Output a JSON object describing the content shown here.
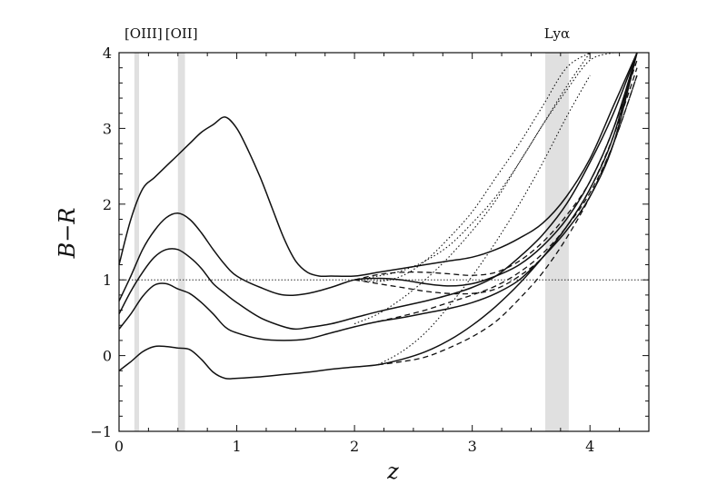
{
  "chart_data": {
    "type": "line",
    "title": "",
    "xlabel": "z",
    "ylabel": "B−R",
    "xlim": [
      0,
      4.5
    ],
    "ylim": [
      -1,
      4
    ],
    "xticks": [
      0,
      1,
      2,
      3,
      4
    ],
    "yticks": [
      -1,
      0,
      1,
      2,
      3,
      4
    ],
    "grid": false,
    "reference_line": {
      "y": 1,
      "style": "dotted"
    },
    "bands": [
      {
        "label": "[OIII]",
        "x": [
          0.13,
          0.17
        ],
        "color": "#e0e0e0"
      },
      {
        "label": "[OII]",
        "x": [
          0.5,
          0.56
        ],
        "color": "#e0e0e0"
      },
      {
        "label": "Lyα",
        "x": [
          3.62,
          3.82
        ],
        "color": "#e0e0e0"
      }
    ],
    "series": [
      {
        "style": "solid",
        "x": [
          0,
          0.1,
          0.2,
          0.3,
          0.4,
          0.5,
          0.6,
          0.7,
          0.8,
          0.9,
          1.0,
          1.1,
          1.2,
          1.3,
          1.4,
          1.5,
          1.6,
          1.7,
          1.8,
          2.0,
          2.2,
          2.4,
          2.6,
          2.8,
          3.0,
          3.2,
          3.4,
          3.6,
          3.8,
          4.0,
          4.2,
          4.4
        ],
        "y": [
          1.2,
          1.8,
          2.2,
          2.35,
          2.5,
          2.65,
          2.8,
          2.95,
          3.05,
          3.15,
          3.0,
          2.7,
          2.35,
          1.95,
          1.55,
          1.25,
          1.1,
          1.05,
          1.05,
          1.05,
          1.1,
          1.15,
          1.2,
          1.25,
          1.3,
          1.4,
          1.55,
          1.75,
          2.1,
          2.6,
          3.3,
          4.0
        ]
      },
      {
        "style": "solid",
        "x": [
          0,
          0.1,
          0.2,
          0.3,
          0.4,
          0.5,
          0.6,
          0.7,
          0.8,
          0.9,
          1.0,
          1.2,
          1.4,
          1.6,
          1.8,
          2.0,
          2.2,
          2.4,
          2.6,
          2.8,
          3.0,
          3.2,
          3.4,
          3.6,
          3.8,
          4.0,
          4.2,
          4.4
        ],
        "y": [
          0.72,
          1.05,
          1.4,
          1.65,
          1.82,
          1.88,
          1.8,
          1.62,
          1.4,
          1.2,
          1.05,
          0.9,
          0.8,
          0.82,
          0.9,
          1.0,
          1.02,
          1.0,
          0.95,
          0.92,
          0.95,
          1.05,
          1.2,
          1.45,
          1.8,
          2.3,
          3.0,
          4.0
        ]
      },
      {
        "style": "solid",
        "x": [
          0,
          0.1,
          0.2,
          0.3,
          0.4,
          0.5,
          0.6,
          0.7,
          0.8,
          0.9,
          1.0,
          1.2,
          1.4,
          1.5,
          1.6,
          1.8,
          2.0,
          2.2,
          2.4,
          2.6,
          2.8,
          3.0,
          3.2,
          3.4,
          3.6,
          3.8,
          4.0,
          4.2,
          4.4
        ],
        "y": [
          0.55,
          0.85,
          1.1,
          1.3,
          1.4,
          1.4,
          1.3,
          1.15,
          0.95,
          0.82,
          0.7,
          0.5,
          0.38,
          0.35,
          0.37,
          0.42,
          0.5,
          0.58,
          0.65,
          0.72,
          0.8,
          0.9,
          1.05,
          1.3,
          1.6,
          2.0,
          2.55,
          3.2,
          4.0
        ]
      },
      {
        "style": "solid",
        "x": [
          0,
          0.1,
          0.2,
          0.3,
          0.4,
          0.5,
          0.6,
          0.7,
          0.8,
          0.9,
          1.0,
          1.2,
          1.4,
          1.6,
          1.8,
          2.0,
          2.2,
          2.4,
          2.6,
          2.8,
          3.0,
          3.2,
          3.4,
          3.6,
          3.8,
          4.0,
          4.2,
          4.4
        ],
        "y": [
          0.35,
          0.55,
          0.78,
          0.93,
          0.95,
          0.88,
          0.82,
          0.7,
          0.55,
          0.38,
          0.3,
          0.22,
          0.2,
          0.22,
          0.3,
          0.38,
          0.45,
          0.5,
          0.56,
          0.62,
          0.7,
          0.82,
          1.0,
          1.3,
          1.65,
          2.1,
          2.8,
          4.0
        ]
      },
      {
        "style": "solid",
        "x": [
          0,
          0.1,
          0.2,
          0.3,
          0.4,
          0.5,
          0.6,
          0.7,
          0.8,
          0.9,
          1.0,
          1.2,
          1.4,
          1.6,
          1.8,
          2.0,
          2.2,
          2.4,
          2.6,
          2.8,
          3.0,
          3.2,
          3.4,
          3.6,
          3.8,
          4.0,
          4.2,
          4.4
        ],
        "y": [
          -0.2,
          -0.08,
          0.05,
          0.12,
          0.12,
          0.1,
          0.08,
          -0.05,
          -0.22,
          -0.3,
          -0.3,
          -0.28,
          -0.25,
          -0.22,
          -0.18,
          -0.15,
          -0.12,
          -0.05,
          0.05,
          0.2,
          0.4,
          0.65,
          0.95,
          1.3,
          1.7,
          2.2,
          2.9,
          4.0
        ]
      },
      {
        "style": "dashed",
        "x": [
          2.0,
          2.2,
          2.4,
          2.6,
          2.8,
          3.0,
          3.2,
          3.4,
          3.6,
          3.8,
          4.0,
          4.2,
          4.4
        ],
        "y": [
          1.0,
          1.07,
          1.1,
          1.1,
          1.08,
          1.06,
          1.1,
          1.25,
          1.5,
          1.85,
          2.3,
          3.0,
          3.9
        ]
      },
      {
        "style": "dashed",
        "x": [
          2.0,
          2.2,
          2.4,
          2.6,
          2.8,
          3.0,
          3.2,
          3.4,
          3.6,
          3.8,
          4.0,
          4.2,
          4.4
        ],
        "y": [
          1.0,
          0.95,
          0.9,
          0.85,
          0.82,
          0.82,
          0.88,
          1.05,
          1.3,
          1.7,
          2.2,
          2.9,
          3.8
        ]
      },
      {
        "style": "dashed",
        "x": [
          2.2,
          2.4,
          2.6,
          2.8,
          3.0,
          3.2,
          3.4,
          3.6,
          3.8,
          4.0,
          4.2,
          4.4
        ],
        "y": [
          0.45,
          0.52,
          0.6,
          0.7,
          0.8,
          0.92,
          1.1,
          1.35,
          1.7,
          2.15,
          2.8,
          3.7
        ]
      },
      {
        "style": "dashed",
        "x": [
          2.2,
          2.4,
          2.6,
          2.8,
          3.0,
          3.2,
          3.4,
          3.6,
          3.8,
          4.0,
          4.2,
          4.4
        ],
        "y": [
          -0.12,
          -0.08,
          -0.02,
          0.1,
          0.25,
          0.45,
          0.75,
          1.1,
          1.55,
          2.1,
          2.8,
          3.7
        ]
      },
      {
        "style": "dotted",
        "x": [
          2.0,
          2.2,
          2.4,
          2.6,
          2.8,
          3.0,
          3.2,
          3.4,
          3.6,
          3.8,
          4.0,
          4.2
        ],
        "y": [
          1.0,
          1.05,
          1.12,
          1.25,
          1.45,
          1.75,
          2.1,
          2.55,
          3.05,
          3.5,
          3.9,
          4.0
        ]
      },
      {
        "style": "dotted",
        "x": [
          2.0,
          2.2,
          2.4,
          2.6,
          2.8,
          3.0,
          3.2,
          3.4,
          3.6,
          3.8,
          4.0
        ],
        "y": [
          1.0,
          0.98,
          1.05,
          1.25,
          1.55,
          1.9,
          2.35,
          2.8,
          3.3,
          3.8,
          4.0
        ]
      },
      {
        "style": "dotted",
        "x": [
          2.0,
          2.2,
          2.4,
          2.6,
          2.8,
          3.0,
          3.2,
          3.4,
          3.6,
          3.8,
          4.0
        ],
        "y": [
          0.42,
          0.55,
          0.75,
          1.0,
          1.3,
          1.65,
          2.05,
          2.55,
          3.05,
          3.55,
          4.0
        ]
      },
      {
        "style": "dotted",
        "x": [
          2.2,
          2.4,
          2.6,
          2.8,
          3.0,
          3.2,
          3.4,
          3.6,
          3.8,
          4.0
        ],
        "y": [
          -0.12,
          0.05,
          0.3,
          0.65,
          1.05,
          1.5,
          2.0,
          2.55,
          3.15,
          3.7
        ]
      }
    ]
  }
}
